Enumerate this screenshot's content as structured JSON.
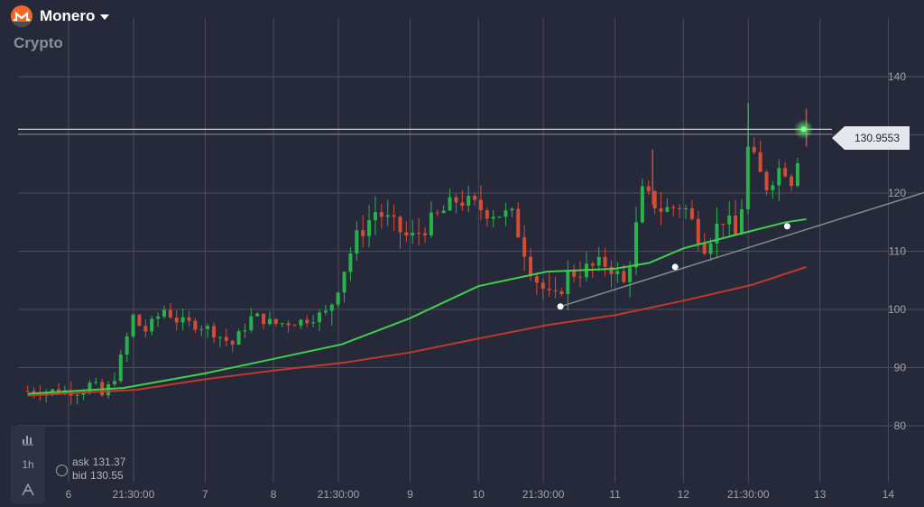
{
  "header": {
    "asset_name": "Monero",
    "category": "Crypto"
  },
  "quote": {
    "ask_label": "ask",
    "ask_value": "131.37",
    "bid_label": "bid",
    "bid_value": "130.55"
  },
  "toolbar": {
    "timeframe": "1h"
  },
  "chart_data": {
    "type": "candlestick",
    "y_ticks": [
      80,
      90,
      100,
      110,
      120,
      130,
      140
    ],
    "ylim": [
      74.4,
      146.1
    ],
    "x_ticks": [
      {
        "label": "6",
        "t": 0
      },
      {
        "label": "21:30:00",
        "t": 0.95
      },
      {
        "label": "7",
        "t": 2
      },
      {
        "label": "8",
        "t": 3
      },
      {
        "label": "21:30:00",
        "t": 3.95
      },
      {
        "label": "9",
        "t": 5
      },
      {
        "label": "10",
        "t": 6
      },
      {
        "label": "21:30:00",
        "t": 6.95
      },
      {
        "label": "11",
        "t": 8
      },
      {
        "label": "12",
        "t": 9
      },
      {
        "label": "21:30:00",
        "t": 9.95
      },
      {
        "label": "13",
        "t": 11
      },
      {
        "label": "14",
        "t": 12
      }
    ],
    "current_price": "130.9553",
    "current_price_value": 130.96,
    "anchors": [
      {
        "t": -0.6,
        "v": 86
      },
      {
        "t": 0.2,
        "v": 86
      },
      {
        "t": 0.35,
        "v": 87.5
      },
      {
        "t": 0.5,
        "v": 85
      },
      {
        "t": 0.7,
        "v": 89
      },
      {
        "t": 0.95,
        "v": 99
      },
      {
        "t": 1.1,
        "v": 96
      },
      {
        "t": 1.4,
        "v": 100
      },
      {
        "t": 1.6,
        "v": 98
      },
      {
        "t": 2.0,
        "v": 97
      },
      {
        "t": 2.4,
        "v": 94
      },
      {
        "t": 2.7,
        "v": 99
      },
      {
        "t": 3.0,
        "v": 97.5
      },
      {
        "t": 3.4,
        "v": 98
      },
      {
        "t": 3.8,
        "v": 99.5
      },
      {
        "t": 4.0,
        "v": 106
      },
      {
        "t": 4.2,
        "v": 112
      },
      {
        "t": 4.5,
        "v": 117
      },
      {
        "t": 5.0,
        "v": 112
      },
      {
        "t": 5.4,
        "v": 116
      },
      {
        "t": 5.7,
        "v": 119
      },
      {
        "t": 6.1,
        "v": 117
      },
      {
        "t": 6.5,
        "v": 116
      },
      {
        "t": 6.8,
        "v": 106
      },
      {
        "t": 7.1,
        "v": 101
      },
      {
        "t": 7.3,
        "v": 106
      },
      {
        "t": 7.6,
        "v": 107
      },
      {
        "t": 7.9,
        "v": 108
      },
      {
        "t": 8.15,
        "v": 104
      },
      {
        "t": 8.4,
        "v": 120
      },
      {
        "t": 8.7,
        "v": 117
      },
      {
        "t": 9.0,
        "v": 118
      },
      {
        "t": 9.3,
        "v": 111
      },
      {
        "t": 9.6,
        "v": 116
      },
      {
        "t": 9.8,
        "v": 112
      },
      {
        "t": 9.95,
        "v": 128
      },
      {
        "t": 10.2,
        "v": 121
      },
      {
        "t": 10.45,
        "v": 125
      },
      {
        "t": 10.6,
        "v": 122
      },
      {
        "t": 10.75,
        "v": 131
      }
    ],
    "ma_fast": [
      [
        -0.6,
        85.5
      ],
      [
        0.8,
        86.5
      ],
      [
        2.0,
        89
      ],
      [
        3.0,
        91.5
      ],
      [
        4.0,
        94
      ],
      [
        5.0,
        98.5
      ],
      [
        6.0,
        104
      ],
      [
        7.0,
        106.5
      ],
      [
        8.0,
        107
      ],
      [
        8.5,
        108
      ],
      [
        9.0,
        110.5
      ],
      [
        9.5,
        112
      ],
      [
        10.0,
        113.5
      ],
      [
        10.5,
        115
      ],
      [
        10.8,
        115.5
      ]
    ],
    "ma_slow": [
      [
        -0.6,
        85.2
      ],
      [
        1.0,
        86.2
      ],
      [
        2.0,
        88
      ],
      [
        3.0,
        89.5
      ],
      [
        4.0,
        90.8
      ],
      [
        5.0,
        92.6
      ],
      [
        6.0,
        95
      ],
      [
        7.0,
        97.3
      ],
      [
        8.0,
        99
      ],
      [
        9.0,
        101.5
      ],
      [
        10.0,
        104.2
      ],
      [
        10.8,
        107.3
      ]
    ],
    "trendline": [
      [
        7.2,
        100.5
      ],
      [
        13.1,
        122.2
      ]
    ],
    "markers": [
      [
        7.2,
        100.5
      ],
      [
        8.88,
        107.3
      ],
      [
        10.52,
        114.3
      ]
    ],
    "colors": {
      "up": "#27b24a",
      "down": "#d54c35",
      "ma_fast": "#3fd04a",
      "ma_slow": "#c0392b",
      "trend": "#7c8f8a",
      "grid": "#4a4d5e",
      "tick": "#9ea2b0",
      "price_line": "#d9dbe3"
    }
  }
}
